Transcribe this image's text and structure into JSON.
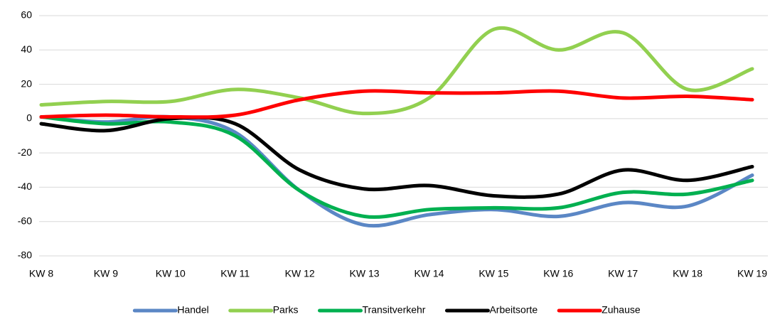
{
  "chart_data": {
    "type": "line",
    "categories": [
      "KW 8",
      "KW 9",
      "KW 10",
      "KW 11",
      "KW 12",
      "KW 13",
      "KW 14",
      "KW 15",
      "KW 16",
      "KW 17",
      "KW 18",
      "KW 19"
    ],
    "series": [
      {
        "name": "Handel",
        "color": "#5b87c5",
        "values": [
          1,
          -2,
          1,
          -8,
          -42,
          -62,
          -56,
          -53,
          -57,
          -49,
          -51,
          -33
        ]
      },
      {
        "name": "Parks",
        "color": "#92d050",
        "values": [
          8,
          10,
          10,
          17,
          12,
          3,
          12,
          52,
          40,
          50,
          17,
          29
        ]
      },
      {
        "name": "Transitverkehr",
        "color": "#00b050",
        "values": [
          1,
          -3,
          -2,
          -10,
          -42,
          -57,
          -53,
          -52,
          -52,
          -43,
          -44,
          -36
        ]
      },
      {
        "name": "Arbeitsorte",
        "color": "#000000",
        "values": [
          -3,
          -7,
          0,
          -3,
          -30,
          -41,
          -39,
          -45,
          -44,
          -30,
          -36,
          -28
        ]
      },
      {
        "name": "Zuhause",
        "color": "#ff0000",
        "values": [
          1,
          2,
          1,
          2,
          11,
          16,
          15,
          15,
          16,
          12,
          13,
          11
        ]
      }
    ],
    "ylim": [
      -80,
      60
    ],
    "yticks": [
      -80,
      -60,
      -40,
      -20,
      0,
      20,
      40,
      60
    ],
    "grid": true,
    "legend": "bottom"
  }
}
